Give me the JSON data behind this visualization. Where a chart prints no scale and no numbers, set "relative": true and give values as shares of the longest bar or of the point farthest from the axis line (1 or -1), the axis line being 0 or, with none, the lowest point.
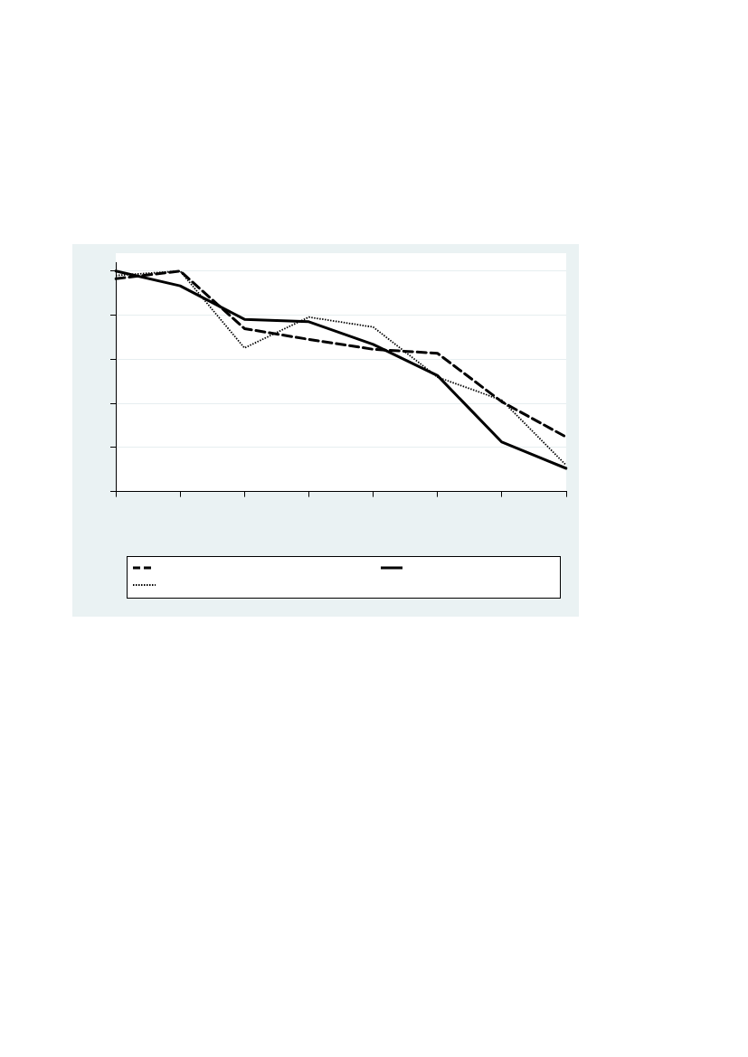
{
  "chart_data": {
    "type": "line",
    "relative": true,
    "categories": [
      null,
      null,
      null,
      null,
      null,
      null,
      null,
      null
    ],
    "grid": "y",
    "marker": "none",
    "series": [
      {
        "color": "#000000",
        "line_style": "dashed",
        "values": [
          0.965,
          1,
          0.739,
          0.69,
          0.645,
          0.627,
          0.407,
          0.247
        ]
      },
      {
        "color": "#000000",
        "line_style": "solid",
        "values": [
          1,
          0.933,
          0.781,
          0.77,
          0.667,
          0.526,
          0.224,
          0.105
        ]
      },
      {
        "color": "#000000",
        "line_style": "dotted",
        "values": [
          0.98,
          1,
          0.651,
          0.791,
          0.746,
          0.519,
          0.414,
          0.119
        ]
      }
    ]
  }
}
